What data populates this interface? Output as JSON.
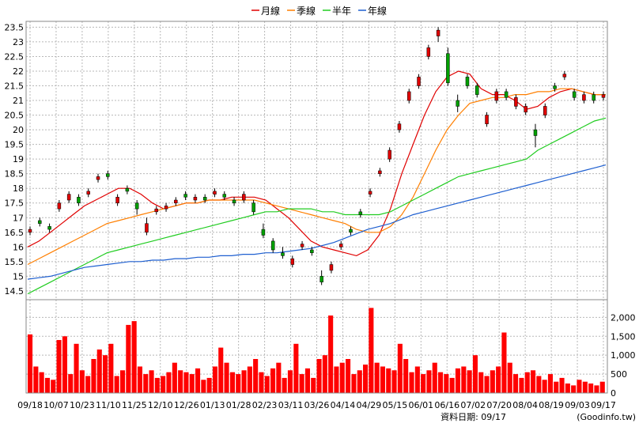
{
  "chart_data": {
    "type": "candlestick",
    "legend": [
      {
        "name": "月線",
        "color": "#e00000"
      },
      {
        "name": "季線",
        "color": "#ff7f00"
      },
      {
        "name": "半年",
        "color": "#20cc20"
      },
      {
        "name": "年線",
        "color": "#1e5fd0"
      }
    ],
    "legend_position": "top-center",
    "grid": true,
    "price_axis": {
      "ylim": [
        14.2,
        23.7
      ],
      "ticks": [
        "14.5",
        "15",
        "15.5",
        "16",
        "16.5",
        "17",
        "17.5",
        "18",
        "18.5",
        "19",
        "19.5",
        "20",
        "20.5",
        "21",
        "21.5",
        "22",
        "22.5",
        "23",
        "23.5"
      ]
    },
    "volume_axis": {
      "ylim": [
        0,
        2300
      ],
      "ticks": [
        "0",
        "500",
        "1,000",
        "1,500",
        "2,000"
      ]
    },
    "x_ticks": [
      "09/18",
      "10/07",
      "10/23",
      "11/10",
      "11/25",
      "12/10",
      "12/26",
      "01/13",
      "01/28",
      "02/23",
      "03/11",
      "03/26",
      "04/14",
      "04/29",
      "05/15",
      "06/01",
      "06/16",
      "07/02",
      "07/20",
      "08/04",
      "08/19",
      "09/03",
      "09/17"
    ],
    "series": [
      {
        "name": "月線",
        "values": [
          16.0,
          16.2,
          16.5,
          16.8,
          17.1,
          17.4,
          17.6,
          17.8,
          18.0,
          18.0,
          17.8,
          17.5,
          17.3,
          17.4,
          17.5,
          17.5,
          17.6,
          17.6,
          17.7,
          17.7,
          17.7,
          17.6,
          17.3,
          17.0,
          16.6,
          16.2,
          16.0,
          15.9,
          15.8,
          15.7,
          15.9,
          16.4,
          17.3,
          18.5,
          19.5,
          20.5,
          21.3,
          21.8,
          22.0,
          21.9,
          21.4,
          21.2,
          21.2,
          21.0,
          20.7,
          20.8,
          21.1,
          21.3,
          21.4,
          21.3,
          21.2,
          21.2
        ]
      },
      {
        "name": "季線",
        "values": [
          15.4,
          15.6,
          15.8,
          16.0,
          16.2,
          16.4,
          16.6,
          16.8,
          16.9,
          17.0,
          17.1,
          17.2,
          17.3,
          17.4,
          17.5,
          17.5,
          17.6,
          17.6,
          17.6,
          17.6,
          17.6,
          17.5,
          17.4,
          17.3,
          17.2,
          17.1,
          17.0,
          16.9,
          16.8,
          16.6,
          16.5,
          16.5,
          16.7,
          17.1,
          17.7,
          18.5,
          19.3,
          20.0,
          20.5,
          20.9,
          21.0,
          21.1,
          21.1,
          21.2,
          21.2,
          21.3,
          21.3,
          21.4,
          21.4,
          21.3,
          21.2,
          21.2
        ]
      },
      {
        "name": "半年",
        "values": [
          14.4,
          14.6,
          14.8,
          15.0,
          15.2,
          15.4,
          15.6,
          15.8,
          15.9,
          16.0,
          16.1,
          16.2,
          16.3,
          16.4,
          16.5,
          16.6,
          16.7,
          16.8,
          16.9,
          17.0,
          17.1,
          17.2,
          17.2,
          17.3,
          17.3,
          17.3,
          17.2,
          17.2,
          17.1,
          17.1,
          17.1,
          17.1,
          17.2,
          17.4,
          17.6,
          17.8,
          18.0,
          18.2,
          18.4,
          18.5,
          18.6,
          18.7,
          18.8,
          18.9,
          19.0,
          19.3,
          19.5,
          19.7,
          19.9,
          20.1,
          20.3,
          20.4
        ]
      },
      {
        "name": "年線",
        "values": [
          14.9,
          14.95,
          15.0,
          15.1,
          15.2,
          15.3,
          15.35,
          15.4,
          15.45,
          15.5,
          15.5,
          15.55,
          15.55,
          15.6,
          15.6,
          15.65,
          15.65,
          15.7,
          15.7,
          15.75,
          15.75,
          15.8,
          15.8,
          15.85,
          15.9,
          15.95,
          16.05,
          16.15,
          16.3,
          16.45,
          16.6,
          16.7,
          16.8,
          16.95,
          17.1,
          17.2,
          17.3,
          17.4,
          17.5,
          17.6,
          17.7,
          17.8,
          17.9,
          18.0,
          18.1,
          18.2,
          18.3,
          18.4,
          18.5,
          18.6,
          18.7,
          18.8
        ]
      }
    ],
    "candles": [
      {
        "o": 16.5,
        "c": 16.6,
        "h": 16.7,
        "l": 16.4
      },
      {
        "o": 16.9,
        "c": 16.8,
        "h": 17.0,
        "l": 16.7
      },
      {
        "o": 16.7,
        "c": 16.6,
        "h": 16.8,
        "l": 16.5
      },
      {
        "o": 17.3,
        "c": 17.5,
        "h": 17.6,
        "l": 17.2
      },
      {
        "o": 17.6,
        "c": 17.8,
        "h": 17.9,
        "l": 17.5
      },
      {
        "o": 17.7,
        "c": 17.5,
        "h": 17.8,
        "l": 17.4
      },
      {
        "o": 17.8,
        "c": 17.9,
        "h": 18.0,
        "l": 17.7
      },
      {
        "o": 18.3,
        "c": 18.4,
        "h": 18.5,
        "l": 18.2
      },
      {
        "o": 18.5,
        "c": 18.4,
        "h": 18.6,
        "l": 18.3
      },
      {
        "o": 17.5,
        "c": 17.7,
        "h": 17.8,
        "l": 17.4
      },
      {
        "o": 18.0,
        "c": 17.9,
        "h": 18.1,
        "l": 17.8
      },
      {
        "o": 17.5,
        "c": 17.3,
        "h": 17.6,
        "l": 17.1
      },
      {
        "o": 16.5,
        "c": 16.8,
        "h": 17.0,
        "l": 16.4
      },
      {
        "o": 17.2,
        "c": 17.3,
        "h": 17.4,
        "l": 17.1
      },
      {
        "o": 17.3,
        "c": 17.4,
        "h": 17.5,
        "l": 17.2
      },
      {
        "o": 17.5,
        "c": 17.6,
        "h": 17.7,
        "l": 17.4
      },
      {
        "o": 17.8,
        "c": 17.7,
        "h": 17.9,
        "l": 17.6
      },
      {
        "o": 17.6,
        "c": 17.7,
        "h": 17.8,
        "l": 17.5
      },
      {
        "o": 17.7,
        "c": 17.6,
        "h": 17.8,
        "l": 17.5
      },
      {
        "o": 17.8,
        "c": 17.9,
        "h": 18.0,
        "l": 17.7
      },
      {
        "o": 17.8,
        "c": 17.7,
        "h": 17.9,
        "l": 17.6
      },
      {
        "o": 17.6,
        "c": 17.5,
        "h": 17.7,
        "l": 17.4
      },
      {
        "o": 17.6,
        "c": 17.8,
        "h": 17.9,
        "l": 17.5
      },
      {
        "o": 17.5,
        "c": 17.2,
        "h": 17.6,
        "l": 17.1
      },
      {
        "o": 16.6,
        "c": 16.4,
        "h": 16.8,
        "l": 16.3
      },
      {
        "o": 16.2,
        "c": 15.9,
        "h": 16.3,
        "l": 15.8
      },
      {
        "o": 15.8,
        "c": 15.7,
        "h": 16.0,
        "l": 15.6
      },
      {
        "o": 15.4,
        "c": 15.6,
        "h": 15.7,
        "l": 15.3
      },
      {
        "o": 16.0,
        "c": 16.1,
        "h": 16.2,
        "l": 15.9
      },
      {
        "o": 15.9,
        "c": 15.8,
        "h": 16.0,
        "l": 15.7
      },
      {
        "o": 15.0,
        "c": 14.8,
        "h": 15.2,
        "l": 14.7
      },
      {
        "o": 15.2,
        "c": 15.4,
        "h": 15.5,
        "l": 15.1
      },
      {
        "o": 16.0,
        "c": 16.1,
        "h": 16.2,
        "l": 15.9
      },
      {
        "o": 16.6,
        "c": 16.5,
        "h": 16.7,
        "l": 16.4
      },
      {
        "o": 17.2,
        "c": 17.1,
        "h": 17.3,
        "l": 17.0
      },
      {
        "o": 17.8,
        "c": 17.9,
        "h": 18.0,
        "l": 17.7
      },
      {
        "o": 18.5,
        "c": 18.6,
        "h": 18.7,
        "l": 18.4
      },
      {
        "o": 19.0,
        "c": 19.3,
        "h": 19.4,
        "l": 18.9
      },
      {
        "o": 20.0,
        "c": 20.2,
        "h": 20.3,
        "l": 19.9
      },
      {
        "o": 21.0,
        "c": 21.3,
        "h": 21.4,
        "l": 20.9
      },
      {
        "o": 21.5,
        "c": 21.8,
        "h": 21.9,
        "l": 21.4
      },
      {
        "o": 22.5,
        "c": 22.8,
        "h": 22.9,
        "l": 22.4
      },
      {
        "o": 23.2,
        "c": 23.4,
        "h": 23.5,
        "l": 23.0
      },
      {
        "o": 22.6,
        "c": 21.6,
        "h": 22.8,
        "l": 21.5
      },
      {
        "o": 21.0,
        "c": 20.8,
        "h": 21.2,
        "l": 20.6
      },
      {
        "o": 21.8,
        "c": 21.5,
        "h": 21.9,
        "l": 21.4
      },
      {
        "o": 21.5,
        "c": 21.2,
        "h": 21.6,
        "l": 21.1
      },
      {
        "o": 20.2,
        "c": 20.5,
        "h": 20.6,
        "l": 20.1
      },
      {
        "o": 21.0,
        "c": 21.3,
        "h": 21.4,
        "l": 20.9
      },
      {
        "o": 21.3,
        "c": 21.1,
        "h": 21.4,
        "l": 21.0
      },
      {
        "o": 20.8,
        "c": 21.1,
        "h": 21.2,
        "l": 20.7
      },
      {
        "o": 20.6,
        "c": 20.8,
        "h": 20.9,
        "l": 20.5
      },
      {
        "o": 20.0,
        "c": 19.8,
        "h": 20.2,
        "l": 19.4
      },
      {
        "o": 20.5,
        "c": 20.8,
        "h": 20.9,
        "l": 20.4
      },
      {
        "o": 21.5,
        "c": 21.4,
        "h": 21.6,
        "l": 21.3
      },
      {
        "o": 21.8,
        "c": 21.9,
        "h": 22.0,
        "l": 21.7
      },
      {
        "o": 21.3,
        "c": 21.1,
        "h": 21.4,
        "l": 21.0
      },
      {
        "o": 21.0,
        "c": 21.2,
        "h": 21.3,
        "l": 20.9
      },
      {
        "o": 21.2,
        "c": 21.0,
        "h": 21.3,
        "l": 20.9
      },
      {
        "o": 21.1,
        "c": 21.2,
        "h": 21.3,
        "l": 21.0
      }
    ],
    "volume": [
      1550,
      700,
      550,
      400,
      350,
      1400,
      1500,
      500,
      1300,
      600,
      450,
      900,
      1150,
      1000,
      1300,
      450,
      600,
      1800,
      1900,
      700,
      500,
      600,
      400,
      450,
      550,
      800,
      600,
      550,
      500,
      650,
      350,
      400,
      700,
      1200,
      800,
      550,
      500,
      600,
      700,
      900,
      550,
      450,
      650,
      800,
      400,
      600,
      1300,
      500,
      650,
      400,
      900,
      1000,
      2050,
      700,
      800,
      900,
      500,
      600,
      750,
      2250,
      800,
      700,
      650,
      600,
      1300,
      900,
      550,
      700,
      500,
      600,
      800,
      550,
      500,
      400,
      650,
      700,
      600,
      1000,
      550,
      450,
      600,
      700,
      1600,
      800,
      500,
      400,
      550,
      600,
      450,
      350,
      500,
      300,
      400,
      250,
      200,
      350,
      300,
      250,
      200,
      300
    ]
  },
  "footer": {
    "data_date_label": "資料日期: 09/17",
    "source": "(Goodinfo.tw)"
  }
}
